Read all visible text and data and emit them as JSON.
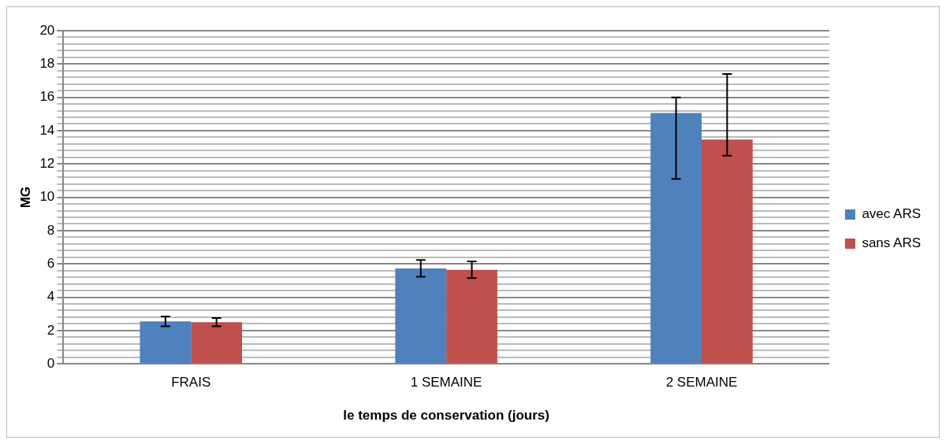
{
  "chart_data": {
    "type": "bar",
    "xlabel": "le temps de conservation (jours)",
    "ylabel": "MG",
    "categories": [
      "FRAIS",
      "1 SEMAINE",
      "2 SEMAINE"
    ],
    "series": [
      {
        "name": "avec ARS",
        "color": "#4f81bd",
        "values": [
          2.55,
          5.73,
          15.06
        ],
        "errors": [
          0.3,
          0.5,
          [
            11.1,
            16.0
          ]
        ]
      },
      {
        "name": "sans ARS",
        "color": "#c0504d",
        "values": [
          2.5,
          5.65,
          13.47
        ],
        "errors": [
          0.25,
          0.5,
          [
            12.5,
            17.4
          ]
        ]
      }
    ],
    "ylim": [
      0,
      20
    ],
    "yticks": [
      0,
      {
        "value": 0.4,
        "label": null
      },
      {
        "value": 0.8,
        "label": null
      },
      {
        "value": 1.2,
        "label": null
      },
      {
        "value": 1.6,
        "label": null
      },
      2,
      {
        "value": 2.4,
        "label": null
      },
      {
        "value": 2.8,
        "label": null
      },
      {
        "value": 3.2,
        "label": null
      },
      {
        "value": 3.6,
        "label": null
      },
      4,
      {
        "value": 4.4,
        "label": null
      },
      {
        "value": 4.8,
        "label": null
      },
      {
        "value": 5.2,
        "label": null
      },
      {
        "value": 5.6,
        "label": null
      },
      6,
      {
        "value": 6.4,
        "label": null
      },
      {
        "value": 6.8,
        "label": null
      },
      {
        "value": 7.2,
        "label": null
      },
      {
        "value": 7.6,
        "label": null
      },
      8,
      {
        "value": 8.4,
        "label": null
      },
      {
        "value": 8.8,
        "label": null
      },
      {
        "value": 9.2,
        "label": null
      },
      {
        "value": 9.6,
        "label": null
      },
      10,
      {
        "value": 10.4,
        "label": null
      },
      {
        "value": 10.8,
        "label": null
      },
      {
        "value": 11.2,
        "label": null
      },
      {
        "value": 11.6,
        "label": null
      },
      12,
      {
        "value": 12.4,
        "label": null
      },
      {
        "value": 12.8,
        "label": null
      },
      {
        "value": 13.2,
        "label": null
      },
      {
        "value": 13.6,
        "label": null
      },
      14,
      {
        "value": 14.4,
        "label": null
      },
      {
        "value": 14.8,
        "label": null
      },
      {
        "value": 15.2,
        "label": null
      },
      {
        "value": 15.6,
        "label": null
      },
      16,
      {
        "value": 16.4,
        "label": null
      },
      {
        "value": 16.8,
        "label": null
      },
      {
        "value": 17.2,
        "label": null
      },
      {
        "value": 17.6,
        "label": null
      },
      18,
      {
        "value": 18.4,
        "label": null
      },
      {
        "value": 18.8,
        "label": null
      },
      {
        "value": 19.2,
        "label": null
      },
      {
        "value": 19.6,
        "label": null
      },
      20
    ],
    "grid": "y",
    "legend": "right"
  }
}
